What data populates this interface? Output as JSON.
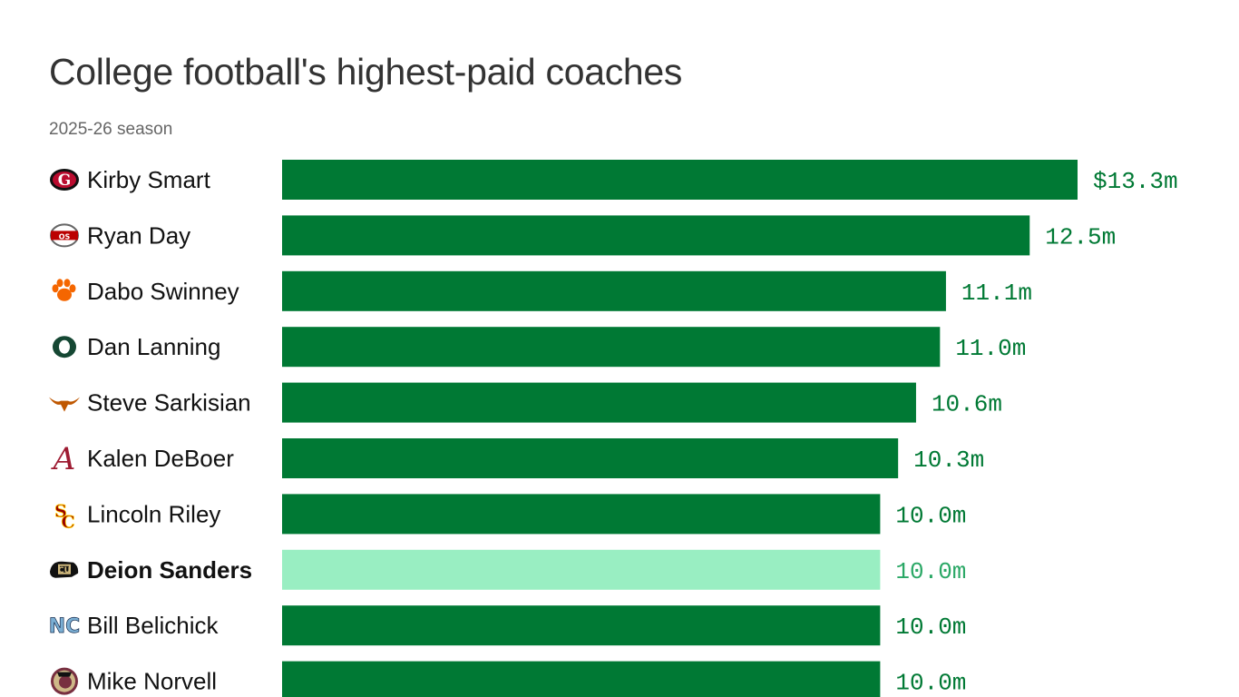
{
  "header": {
    "title": "College football's highest-paid coaches",
    "subtitle": "2025-26 season"
  },
  "colors": {
    "bar": "#007934",
    "bar_highlight": "#99eec2",
    "value_text": "#007934",
    "value_text_highlight": "#2ba866"
  },
  "chart_data": {
    "type": "bar",
    "orientation": "horizontal",
    "title": "College football's highest-paid coaches",
    "subtitle": "2025-26 season",
    "value_unit": "$ millions",
    "xlim": [
      0,
      13.3
    ],
    "grid": false,
    "legend": "none",
    "categories": [
      "Kirby Smart",
      "Ryan Day",
      "Dabo Swinney",
      "Dan Lanning",
      "Steve Sarkisian",
      "Kalen DeBoer",
      "Lincoln Riley",
      "Deion Sanders",
      "Bill Belichick",
      "Mike Norvell"
    ],
    "values": [
      13.3,
      12.5,
      11.1,
      11.0,
      10.6,
      10.3,
      10.0,
      10.0,
      10.0,
      10.0
    ],
    "value_labels": [
      "$13.3m",
      "12.5m",
      "11.1m",
      "11.0m",
      "10.6m",
      "10.3m",
      "10.0m",
      "10.0m",
      "10.0m",
      "10.0m"
    ],
    "highlighted": [
      "Deion Sanders"
    ],
    "team_icons": [
      "georgia-g-logo-icon",
      "ohio-state-logo-icon",
      "clemson-paw-icon",
      "oregon-o-icon",
      "texas-longhorn-icon",
      "alabama-script-a-icon",
      "usc-sc-icon",
      "colorado-buffalo-icon",
      "unc-nc-icon",
      "florida-state-seminole-icon"
    ]
  }
}
